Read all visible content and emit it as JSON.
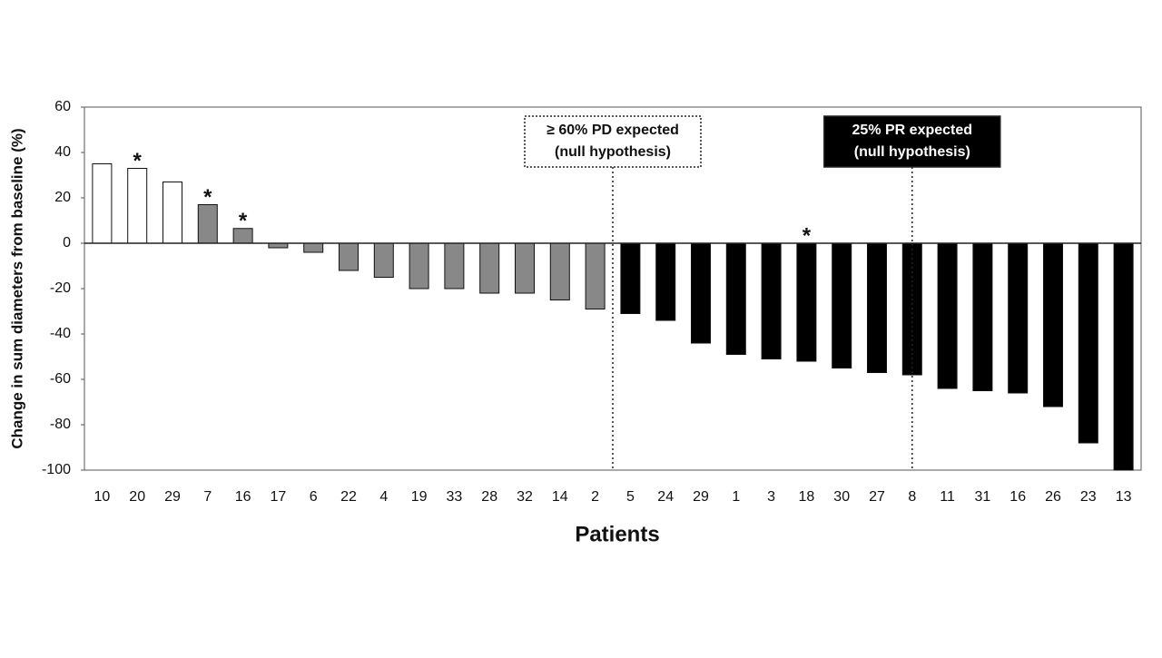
{
  "chart_data": {
    "type": "bar",
    "x_label": "Patients",
    "y_label": "Change in sum diameters from baseline (%)",
    "categories": [
      "10",
      "20",
      "29",
      "7",
      "16",
      "17",
      "6",
      "22",
      "4",
      "19",
      "33",
      "28",
      "32",
      "14",
      "2",
      "5",
      "24",
      "29",
      "1",
      "3",
      "18",
      "30",
      "27",
      "8",
      "11",
      "31",
      "16",
      "26",
      "23",
      "13"
    ],
    "values": [
      35,
      33,
      27,
      17,
      6.5,
      -2,
      -4,
      -12,
      -15,
      -20,
      -20,
      -22,
      -22,
      -25,
      -29,
      -31,
      -34,
      -44,
      -49,
      -51,
      -52,
      -55,
      -57,
      -58,
      -64,
      -65,
      -66,
      -72,
      -88,
      -100
    ],
    "colors": [
      "#ffffff",
      "#ffffff",
      "#ffffff",
      "#888888",
      "#888888",
      "#888888",
      "#888888",
      "#888888",
      "#888888",
      "#888888",
      "#888888",
      "#888888",
      "#888888",
      "#888888",
      "#888888",
      "#000000",
      "#000000",
      "#000000",
      "#000000",
      "#000000",
      "#000000",
      "#000000",
      "#000000",
      "#000000",
      "#000000",
      "#000000",
      "#000000",
      "#000000",
      "#000000",
      "#000000"
    ],
    "ylim": [
      -100,
      60
    ],
    "yticks": [
      60,
      40,
      20,
      0,
      -20,
      -40,
      -60,
      -80,
      -100
    ],
    "annotations": [
      {
        "category_index": 1,
        "text": "*"
      },
      {
        "category_index": 3,
        "text": "*"
      },
      {
        "category_index": 4,
        "text": "*"
      },
      {
        "category_index": 20,
        "text": "*"
      }
    ],
    "reference_lines": [
      {
        "after_index": 14,
        "style": "dotted-box",
        "lines": [
          "≥ 60% PD expected",
          "(null hypothesis)"
        ]
      },
      {
        "after_index": 22.5,
        "style": "filled-box",
        "lines": [
          "25% PR expected",
          "(null hypothesis)"
        ]
      }
    ]
  }
}
